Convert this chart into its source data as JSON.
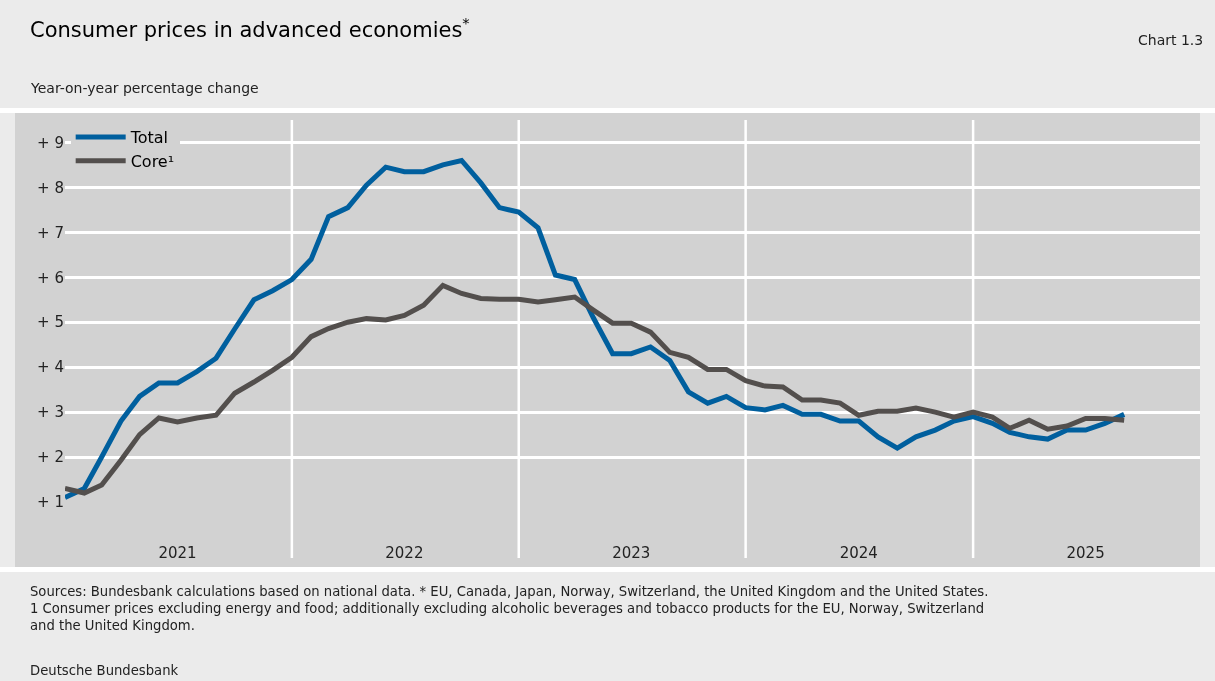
{
  "chart_data": {
    "type": "line",
    "title": "Consumer prices in advanced economies$^{*}$",
    "subtitle": "Year-on-year percentage change",
    "annotations": [
      "Chart 1.3",
      "Sources: Bundesbank calculations based on national data. * EU, Canada, Japan, Norway, Switzerland, the United Kingdom and the United States.\n1 Consumer prices excluding energy and food; additionally excluding alcoholic beverages and tobacco products for the EU, Norway, Switzerland\nand the United Kingdom.",
      "Deutsche Bundesbank"
    ],
    "x": [
      "2021-01",
      "2021-02",
      "2021-03",
      "2021-04",
      "2021-05",
      "2021-06",
      "2021-07",
      "2021-08",
      "2021-09",
      "2021-10",
      "2021-11",
      "2021-12",
      "2022-01",
      "2022-02",
      "2022-03",
      "2022-04",
      "2022-05",
      "2022-06",
      "2022-07",
      "2022-08",
      "2022-09",
      "2022-10",
      "2022-11",
      "2022-12",
      "2023-01",
      "2023-02",
      "2023-03",
      "2023-04",
      "2023-05",
      "2023-06",
      "2023-07",
      "2023-08",
      "2023-09",
      "2023-10",
      "2023-11",
      "2023-12",
      "2024-01",
      "2024-02",
      "2024-03",
      "2024-04",
      "2024-05",
      "2024-06",
      "2024-07",
      "2024-08",
      "2024-09",
      "2024-10",
      "2024-11",
      "2024-12",
      "2025-01",
      "2025-02",
      "2025-03",
      "2025-04",
      "2025-05",
      "2025-06",
      "2025-07",
      "2025-08",
      "2025-09"
    ],
    "series": [
      {
        "name": "Total",
        "color": "#005f9e",
        "values": [
          1.1,
          1.3,
          2.0,
          2.8,
          3.35,
          3.65,
          3.65,
          3.9,
          4.2,
          4.85,
          5.5,
          5.7,
          5.95,
          6.4,
          7.35,
          7.55,
          8.05,
          8.45,
          8.35,
          8.35,
          8.5,
          8.6,
          8.1,
          7.55,
          7.45,
          7.1,
          6.05,
          5.95,
          5.1,
          4.3,
          4.3,
          4.45,
          4.15,
          3.45,
          3.2,
          3.35,
          3.1,
          3.05,
          3.15,
          2.95,
          2.95,
          2.8,
          2.8,
          2.45,
          2.2,
          2.45,
          2.6,
          2.8,
          2.9,
          2.75,
          2.55,
          2.45,
          2.4,
          2.6,
          2.6,
          2.75,
          2.95
        ]
      },
      {
        "name": "Core¹",
        "color": "#534f4d",
        "values": [
          1.3,
          1.2,
          1.38,
          1.93,
          2.5,
          2.87,
          2.78,
          2.87,
          2.93,
          3.42,
          3.67,
          3.93,
          4.22,
          4.68,
          4.86,
          5.0,
          5.08,
          5.05,
          5.15,
          5.38,
          5.82,
          5.64,
          5.53,
          5.51,
          5.51,
          5.45,
          5.5,
          5.56,
          5.27,
          4.98,
          4.98,
          4.78,
          4.33,
          4.22,
          3.95,
          3.95,
          3.7,
          3.58,
          3.56,
          3.27,
          3.27,
          3.2,
          2.93,
          3.02,
          3.02,
          3.09,
          3.0,
          2.89,
          3.0,
          2.89,
          2.64,
          2.82,
          2.62,
          2.69,
          2.86,
          2.86,
          2.82
        ]
      }
    ],
    "xlim": [
      "2021-01-01",
      "2026-01-01"
    ],
    "xticks": [
      {
        "value": "2021-07-01",
        "label": "2021"
      },
      {
        "value": "2022-01-01",
        "label": null
      },
      {
        "value": "2022-07-01",
        "label": "2022"
      },
      {
        "value": "2023-01-01",
        "label": null
      },
      {
        "value": "2023-07-01",
        "label": "2023"
      },
      {
        "value": "2024-01-01",
        "label": null
      },
      {
        "value": "2024-07-01",
        "label": "2024"
      },
      {
        "value": "2025-01-01",
        "label": null
      },
      {
        "value": "2025-07-01",
        "label": "2025"
      }
    ],
    "ylim": [
      1,
      9.5
    ],
    "yticks": [
      {
        "value": 1,
        "label": "+ 1"
      },
      {
        "value": 2,
        "label": "+ 2"
      },
      {
        "value": 3,
        "label": "+ 3"
      },
      {
        "value": 4,
        "label": "+ 4"
      },
      {
        "value": 5,
        "label": "+ 5"
      },
      {
        "value": 6,
        "label": "+ 6"
      },
      {
        "value": 7,
        "label": "+ 7"
      },
      {
        "value": 8,
        "label": "+ 8"
      },
      {
        "value": 9,
        "label": "+ 9"
      }
    ],
    "grid": true,
    "legend": "top left",
    "marker": "none",
    "line_style": "solid"
  }
}
